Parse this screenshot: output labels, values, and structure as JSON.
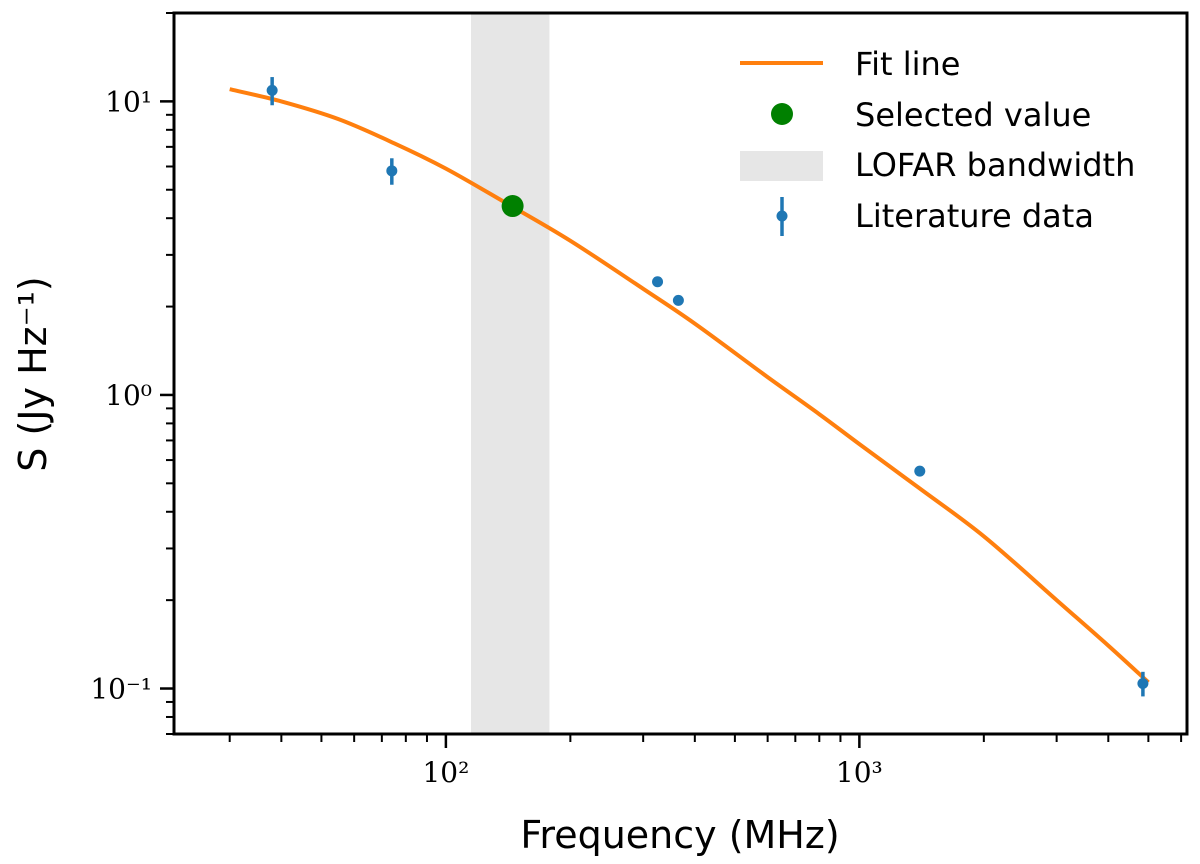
{
  "chart_data": {
    "type": "scatter",
    "title": "",
    "xlabel": "Frequency (MHz)",
    "ylabel": "S (Jy Hz⁻¹)",
    "xscale": "log",
    "yscale": "log",
    "xlim": [
      22,
      6200
    ],
    "ylim": [
      0.07,
      20
    ],
    "grid": false,
    "legend_position": "top-right",
    "x_tick_labels": [
      "10²",
      "10³"
    ],
    "x_tick_values": [
      100,
      1000
    ],
    "y_tick_labels": [
      "10⁻¹",
      "10⁰",
      "10¹"
    ],
    "y_tick_values": [
      0.1,
      1,
      10
    ],
    "band": {
      "name": "LOFAR bandwidth",
      "x_min": 115,
      "x_max": 178,
      "color": "#e6e6e6"
    },
    "series": [
      {
        "name": "Fit line",
        "kind": "line",
        "color": "#ff7f0e",
        "x": [
          30,
          40,
          55,
          75,
          100,
          140,
          200,
          300,
          400,
          600,
          800,
          1000,
          1400,
          2000,
          3000,
          4000,
          5000
        ],
        "y": [
          11.0,
          10.0,
          8.7,
          7.2,
          5.9,
          4.5,
          3.35,
          2.3,
          1.75,
          1.15,
          0.86,
          0.68,
          0.48,
          0.33,
          0.2,
          0.14,
          0.105
        ]
      },
      {
        "name": "Selected value",
        "kind": "marker",
        "color": "#008000",
        "x": [
          145
        ],
        "y": [
          4.4
        ]
      },
      {
        "name": "Literature data",
        "kind": "errorbar",
        "color": "#1f77b4",
        "x": [
          38,
          74,
          325,
          365,
          1400,
          4850
        ],
        "y": [
          10.9,
          5.8,
          2.43,
          2.1,
          0.55,
          0.104
        ],
        "err": [
          1.2,
          0.6,
          0.05,
          0.04,
          0.015,
          0.01
        ]
      }
    ],
    "legend": [
      "Fit line",
      "Selected value",
      "LOFAR bandwidth",
      "Literature data"
    ]
  }
}
